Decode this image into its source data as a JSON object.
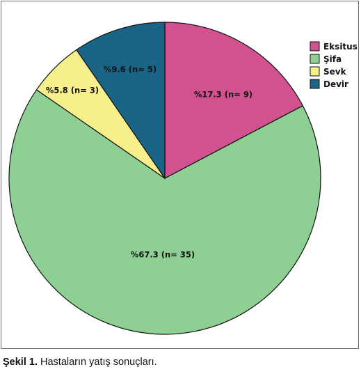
{
  "chart_data": {
    "type": "pie",
    "slices": [
      {
        "name": "Eksitus",
        "value": 17.3,
        "n": 9,
        "label": "%17.3 (n= 9)",
        "color": "#d1528f"
      },
      {
        "name": "Şifa",
        "value": 67.3,
        "n": 35,
        "label": "%67.3 (n= 35)",
        "color": "#8ecf94"
      },
      {
        "name": "Sevk",
        "value": 5.8,
        "n": 3,
        "label": "%5.8 (n= 3)",
        "color": "#f6ef8c"
      },
      {
        "name": "Devir",
        "value": 9.6,
        "n": 5,
        "label": "%9.6 (n= 5)",
        "color": "#1a6485"
      }
    ],
    "legend_position": "top-right"
  },
  "caption": {
    "prefix": "Şekil 1.",
    "text": "Hastaların yatış sonuçları."
  }
}
